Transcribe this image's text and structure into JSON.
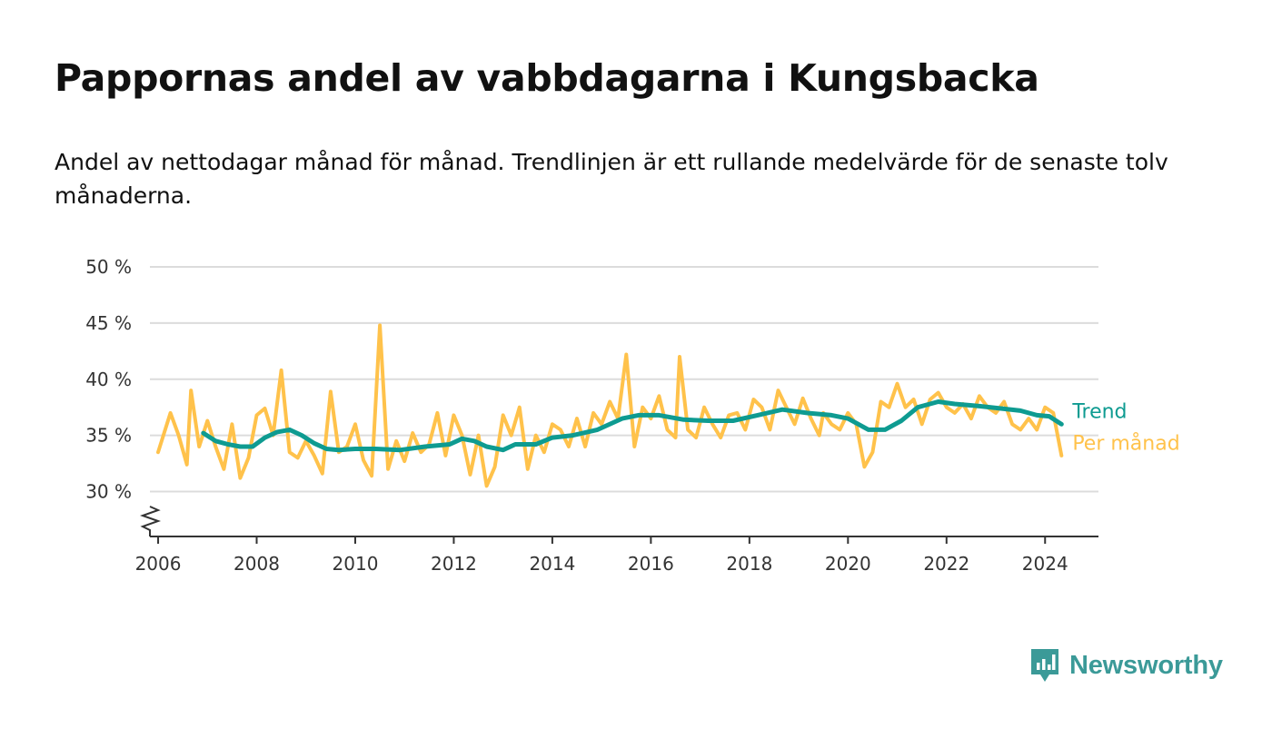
{
  "header": {
    "title": "Pappornas andel av vabbdagarna i Kungsbacka",
    "subtitle": "Andel av nettodagar månad för månad. Trendlinjen är ett rullande medelvärde för de senaste tolv månaderna."
  },
  "brand": {
    "name": "Newsworthy",
    "icon": "newsworthy-logo-icon",
    "color": "#3b9a98"
  },
  "chart_data": {
    "type": "line",
    "title": "Pappornas andel av vabbdagarna i Kungsbacka",
    "subtitle": "Andel av nettodagar månad för månad. Trendlinjen är ett rullande medelvärde för de senaste tolv månaderna.",
    "xlabel": "",
    "ylabel": "",
    "x_ticks": [
      "2006",
      "2008",
      "2010",
      "2012",
      "2014",
      "2016",
      "2018",
      "2020",
      "2022",
      "2024"
    ],
    "y_ticks": [
      "30 %",
      "35 %",
      "40 %",
      "45 %",
      "50 %"
    ],
    "ylim": [
      26,
      50
    ],
    "xlim": [
      "2005-11",
      "2025-02"
    ],
    "y_axis_broken": true,
    "grid": true,
    "legend": "direct labels at line ends (right)",
    "series": [
      {
        "name": "Per månad",
        "color": "#ffc24b",
        "points": [
          [
            "2006-01",
            33.5
          ],
          [
            "2006-04",
            37.0
          ],
          [
            "2006-06",
            35.0
          ],
          [
            "2006-08",
            32.4
          ],
          [
            "2006-09",
            39.0
          ],
          [
            "2006-11",
            34.0
          ],
          [
            "2007-01",
            36.3
          ],
          [
            "2007-03",
            34.0
          ],
          [
            "2007-05",
            32.0
          ],
          [
            "2007-07",
            36.0
          ],
          [
            "2007-09",
            31.2
          ],
          [
            "2007-11",
            33.0
          ],
          [
            "2008-01",
            36.8
          ],
          [
            "2008-03",
            37.4
          ],
          [
            "2008-05",
            35.0
          ],
          [
            "2008-07",
            40.8
          ],
          [
            "2008-09",
            33.5
          ],
          [
            "2008-11",
            33.0
          ],
          [
            "2009-01",
            34.5
          ],
          [
            "2009-03",
            33.2
          ],
          [
            "2009-05",
            31.6
          ],
          [
            "2009-07",
            38.9
          ],
          [
            "2009-09",
            33.5
          ],
          [
            "2009-11",
            34.0
          ],
          [
            "2010-01",
            36.0
          ],
          [
            "2010-03",
            32.8
          ],
          [
            "2010-05",
            31.4
          ],
          [
            "2010-07",
            44.8
          ],
          [
            "2010-09",
            32.0
          ],
          [
            "2010-11",
            34.5
          ],
          [
            "2011-01",
            32.7
          ],
          [
            "2011-03",
            35.2
          ],
          [
            "2011-05",
            33.5
          ],
          [
            "2011-07",
            34.2
          ],
          [
            "2011-09",
            37.0
          ],
          [
            "2011-11",
            33.2
          ],
          [
            "2012-01",
            36.8
          ],
          [
            "2012-03",
            35.0
          ],
          [
            "2012-05",
            31.5
          ],
          [
            "2012-07",
            35.0
          ],
          [
            "2012-09",
            30.5
          ],
          [
            "2012-11",
            32.2
          ],
          [
            "2013-01",
            36.8
          ],
          [
            "2013-03",
            35.0
          ],
          [
            "2013-05",
            37.5
          ],
          [
            "2013-07",
            32.0
          ],
          [
            "2013-09",
            35.0
          ],
          [
            "2013-11",
            33.5
          ],
          [
            "2014-01",
            36.0
          ],
          [
            "2014-03",
            35.5
          ],
          [
            "2014-05",
            34.0
          ],
          [
            "2014-07",
            36.5
          ],
          [
            "2014-09",
            34.0
          ],
          [
            "2014-11",
            37.0
          ],
          [
            "2015-01",
            36.0
          ],
          [
            "2015-03",
            38.0
          ],
          [
            "2015-05",
            36.5
          ],
          [
            "2015-07",
            42.2
          ],
          [
            "2015-09",
            34.0
          ],
          [
            "2015-11",
            37.5
          ],
          [
            "2016-01",
            36.5
          ],
          [
            "2016-03",
            38.5
          ],
          [
            "2016-05",
            35.5
          ],
          [
            "2016-07",
            34.8
          ],
          [
            "2016-08",
            42.0
          ],
          [
            "2016-10",
            35.5
          ],
          [
            "2016-12",
            34.8
          ],
          [
            "2017-02",
            37.5
          ],
          [
            "2017-04",
            36.0
          ],
          [
            "2017-06",
            34.8
          ],
          [
            "2017-08",
            36.8
          ],
          [
            "2017-10",
            37.0
          ],
          [
            "2017-12",
            35.5
          ],
          [
            "2018-02",
            38.2
          ],
          [
            "2018-04",
            37.5
          ],
          [
            "2018-06",
            35.5
          ],
          [
            "2018-08",
            39.0
          ],
          [
            "2018-10",
            37.5
          ],
          [
            "2018-12",
            36.0
          ],
          [
            "2019-02",
            38.3
          ],
          [
            "2019-04",
            36.5
          ],
          [
            "2019-06",
            35.0
          ],
          [
            "2019-07",
            37.0
          ],
          [
            "2019-09",
            36.0
          ],
          [
            "2019-11",
            35.5
          ],
          [
            "2020-01",
            37.0
          ],
          [
            "2020-03",
            36.0
          ],
          [
            "2020-05",
            32.2
          ],
          [
            "2020-07",
            33.5
          ],
          [
            "2020-09",
            38.0
          ],
          [
            "2020-11",
            37.5
          ],
          [
            "2021-01",
            39.6
          ],
          [
            "2021-03",
            37.5
          ],
          [
            "2021-05",
            38.2
          ],
          [
            "2021-07",
            36.0
          ],
          [
            "2021-09",
            38.2
          ],
          [
            "2021-11",
            38.8
          ],
          [
            "2022-01",
            37.5
          ],
          [
            "2022-03",
            37.0
          ],
          [
            "2022-05",
            37.8
          ],
          [
            "2022-07",
            36.5
          ],
          [
            "2022-09",
            38.5
          ],
          [
            "2022-11",
            37.5
          ],
          [
            "2023-01",
            37.0
          ],
          [
            "2023-03",
            38.0
          ],
          [
            "2023-05",
            36.0
          ],
          [
            "2023-07",
            35.5
          ],
          [
            "2023-09",
            36.5
          ],
          [
            "2023-11",
            35.5
          ],
          [
            "2024-01",
            37.5
          ],
          [
            "2024-03",
            37.0
          ],
          [
            "2024-05",
            33.2
          ]
        ]
      },
      {
        "name": "Trend",
        "color": "#0e9b91",
        "points": [
          [
            "2006-12",
            35.2
          ],
          [
            "2007-03",
            34.5
          ],
          [
            "2007-06",
            34.2
          ],
          [
            "2007-09",
            34.0
          ],
          [
            "2007-12",
            34.0
          ],
          [
            "2008-03",
            34.8
          ],
          [
            "2008-06",
            35.3
          ],
          [
            "2008-09",
            35.5
          ],
          [
            "2008-12",
            35.0
          ],
          [
            "2009-03",
            34.3
          ],
          [
            "2009-06",
            33.8
          ],
          [
            "2009-09",
            33.7
          ],
          [
            "2010-01",
            33.8
          ],
          [
            "2010-06",
            33.8
          ],
          [
            "2010-12",
            33.7
          ],
          [
            "2011-06",
            34.0
          ],
          [
            "2011-12",
            34.2
          ],
          [
            "2012-03",
            34.7
          ],
          [
            "2012-06",
            34.5
          ],
          [
            "2012-09",
            34.0
          ],
          [
            "2013-01",
            33.7
          ],
          [
            "2013-04",
            34.2
          ],
          [
            "2013-09",
            34.2
          ],
          [
            "2014-01",
            34.8
          ],
          [
            "2014-06",
            35.0
          ],
          [
            "2014-12",
            35.5
          ],
          [
            "2015-06",
            36.5
          ],
          [
            "2015-10",
            36.8
          ],
          [
            "2016-03",
            36.8
          ],
          [
            "2016-09",
            36.4
          ],
          [
            "2017-03",
            36.3
          ],
          [
            "2017-09",
            36.3
          ],
          [
            "2018-03",
            36.8
          ],
          [
            "2018-09",
            37.3
          ],
          [
            "2019-03",
            37.0
          ],
          [
            "2019-09",
            36.8
          ],
          [
            "2020-01",
            36.5
          ],
          [
            "2020-06",
            35.5
          ],
          [
            "2020-10",
            35.5
          ],
          [
            "2021-02",
            36.3
          ],
          [
            "2021-06",
            37.5
          ],
          [
            "2021-11",
            38.0
          ],
          [
            "2022-03",
            37.8
          ],
          [
            "2022-09",
            37.6
          ],
          [
            "2023-02",
            37.4
          ],
          [
            "2023-07",
            37.2
          ],
          [
            "2023-11",
            36.8
          ],
          [
            "2024-02",
            36.7
          ],
          [
            "2024-05",
            36.0
          ]
        ]
      }
    ]
  }
}
